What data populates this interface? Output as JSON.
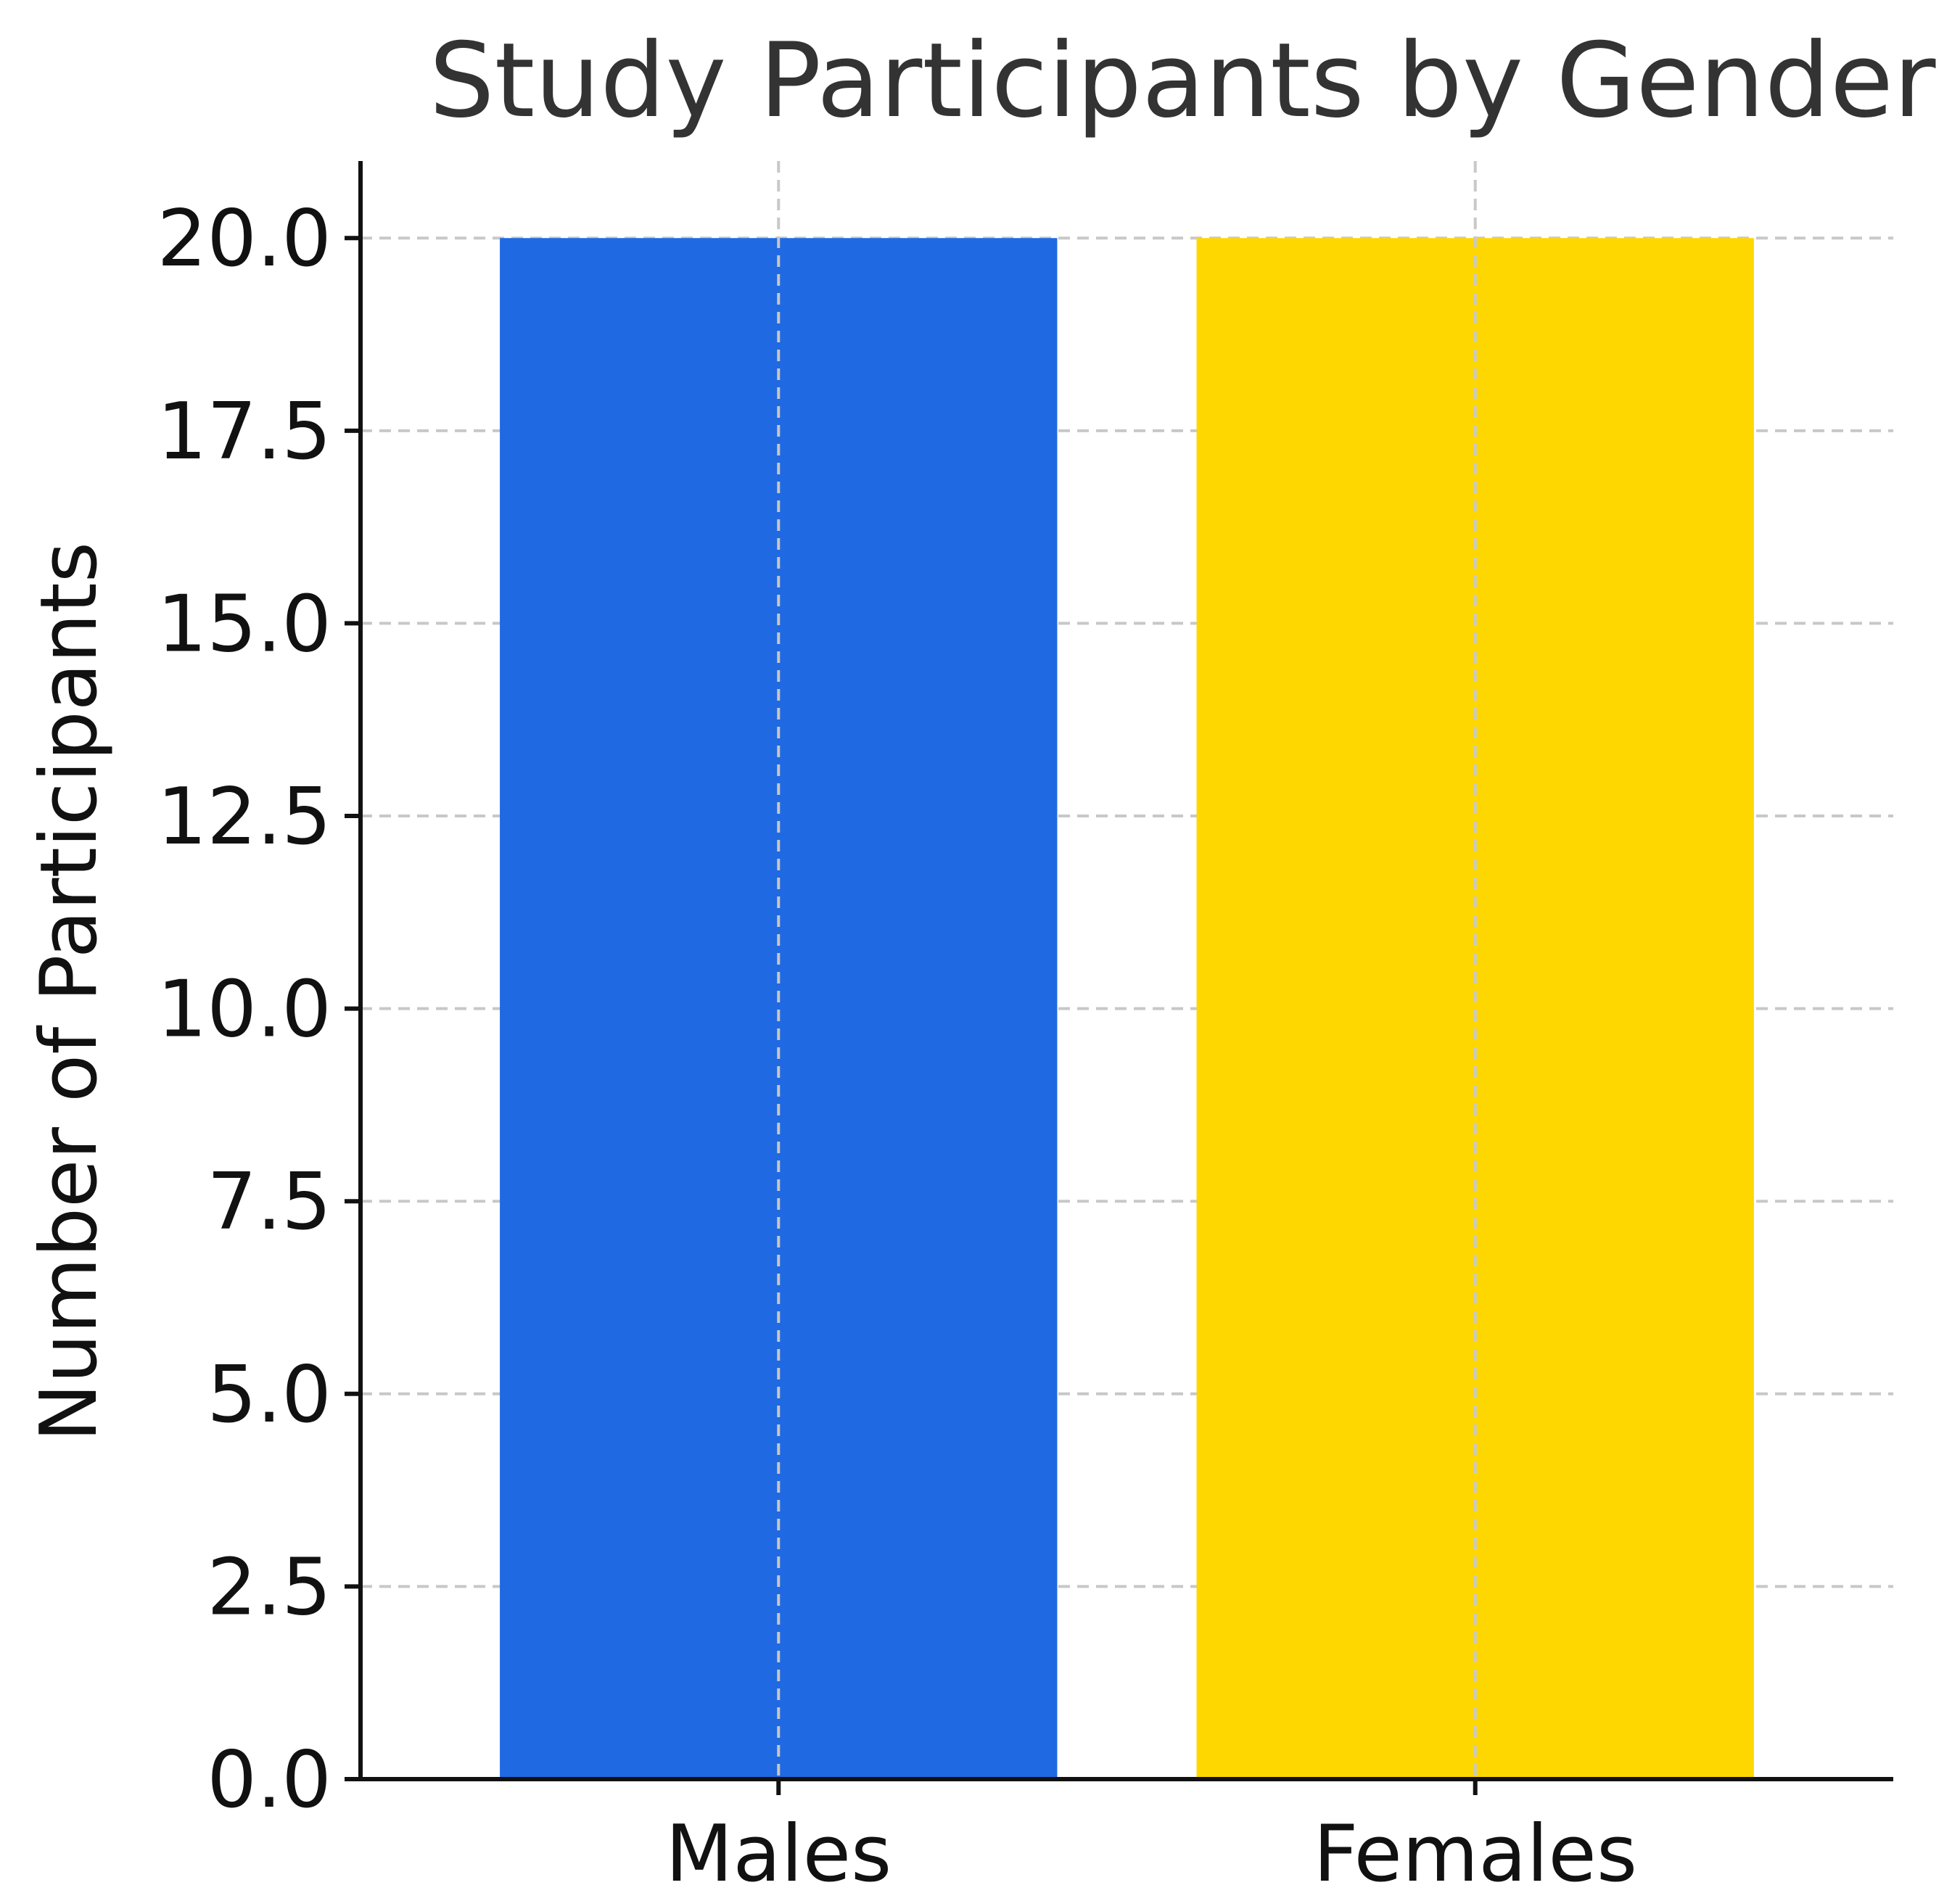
{
  "chart_data": {
    "type": "bar",
    "title": "Study Participants by Gender",
    "xlabel": "",
    "ylabel": "Number of Participants",
    "categories": [
      "Males",
      "Females"
    ],
    "values": [
      20,
      20
    ],
    "colors": [
      "#1f69e3",
      "#ffd700"
    ],
    "ylim": [
      0,
      21
    ],
    "yticks": [
      0,
      2.5,
      5,
      7.5,
      10,
      12.5,
      15,
      17.5,
      20
    ],
    "ytick_labels": [
      "0.0",
      "2.5",
      "5.0",
      "7.5",
      "10.0",
      "12.5",
      "15.0",
      "17.5",
      "20.0"
    ],
    "grid": true
  }
}
